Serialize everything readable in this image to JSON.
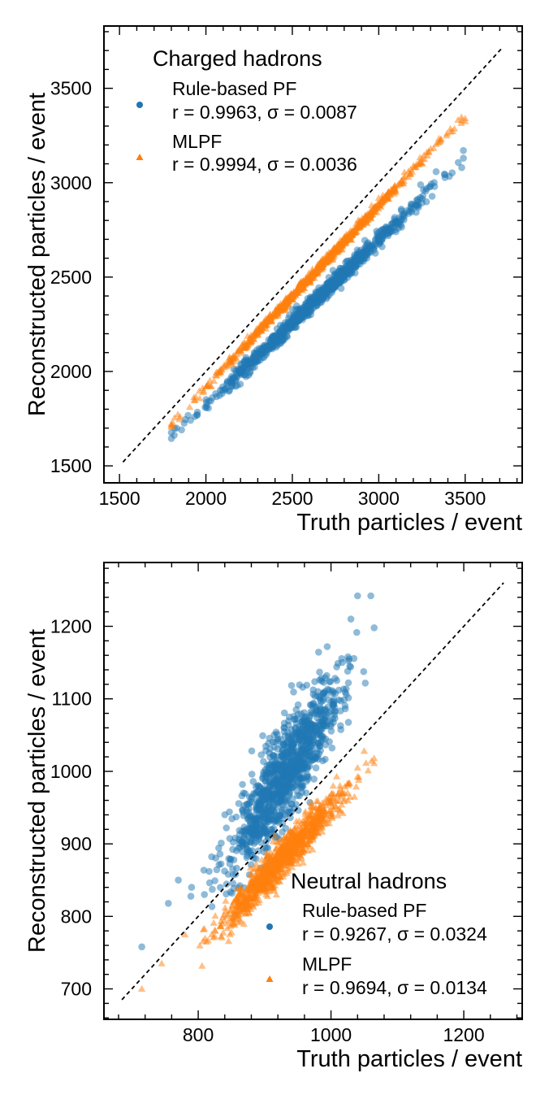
{
  "chart_data": [
    {
      "type": "scatter",
      "panel": "top",
      "xlabel": "Truth particles / event",
      "ylabel": "Reconstructed particles / event",
      "xlim": [
        1410,
        3830
      ],
      "ylim": [
        1410,
        3830
      ],
      "xticks": [
        1500,
        2000,
        2500,
        3000,
        3500
      ],
      "yticks": [
        1500,
        2000,
        2500,
        3000,
        3500
      ],
      "grid": false,
      "legend_placement": "upper-left",
      "legend_title": "Charged hadrons",
      "diagonal": {
        "from": 1520,
        "to": 3720,
        "style": "dashed"
      },
      "series": [
        {
          "name": "Rule-based PF",
          "stat_label": "r = 0.9963,  σ = 0.0087",
          "marker": "circle",
          "color": "#1f77b4",
          "n_points": 900,
          "seed": 11,
          "x_range": [
            1800,
            3490
          ],
          "relation": {
            "slope": 0.88,
            "intercept": 60,
            "scatter_y": 22,
            "x_dist": "normal",
            "x_mean": 2620,
            "x_sd": 300
          },
          "points": [
            [
              1800,
              1645
            ],
            [
              1830,
              1700
            ],
            [
              1880,
              1745
            ],
            [
              2160,
              1965
            ],
            [
              2700,
              2435
            ],
            [
              3100,
              2790
            ],
            [
              3250,
              2915
            ],
            [
              3490,
              3130
            ],
            [
              3480,
              3080
            ]
          ]
        },
        {
          "name": "MLPF",
          "stat_label": "r = 0.9994,  σ = 0.0036",
          "marker": "triangle",
          "color": "#ff7f0e",
          "n_points": 900,
          "seed": 23,
          "x_range": [
            1800,
            3500
          ],
          "relation": {
            "slope": 0.96,
            "intercept": 0,
            "scatter_y": 12,
            "x_dist": "normal",
            "x_mean": 2620,
            "x_sd": 300
          },
          "points": [
            [
              1800,
              1710
            ],
            [
              1850,
              1760
            ],
            [
              2000,
              1920
            ],
            [
              2500,
              2400
            ],
            [
              3000,
              2880
            ],
            [
              3480,
              3330
            ],
            [
              3500,
              3325
            ]
          ]
        }
      ]
    },
    {
      "type": "scatter",
      "panel": "bottom",
      "xlabel": "Truth particles / event",
      "ylabel": "Reconstructed particles / event",
      "xlim": [
        658,
        1288
      ],
      "ylim": [
        658,
        1288
      ],
      "xticks": [
        800,
        1000,
        1200
      ],
      "yticks": [
        700,
        800,
        900,
        1000,
        1100,
        1200
      ],
      "grid": false,
      "legend_placement": "lower-right",
      "legend_title": "Neutral hadrons",
      "diagonal": {
        "from": 685,
        "to": 1260,
        "style": "dashed"
      },
      "series": [
        {
          "name": "Rule-based PF",
          "stat_label": "r = 0.9267,  σ = 0.0324",
          "marker": "circle",
          "color": "#1f77b4",
          "n_points": 1100,
          "seed": 37,
          "x_range": [
            715,
            1065
          ],
          "relation": {
            "slope": 1.35,
            "intercept": -260,
            "scatter_y": 32,
            "x_dist": "normal",
            "x_mean": 930,
            "x_sd": 42
          },
          "points": [
            [
              715,
              758
            ],
            [
              755,
              818
            ],
            [
              770,
              850
            ],
            [
              790,
              840
            ],
            [
              1040,
              1242
            ],
            [
              1060,
              1242
            ],
            [
              1065,
              1198
            ],
            [
              1030,
              1210
            ]
          ]
        },
        {
          "name": "MLPF",
          "stat_label": "r = 0.9694,  σ = 0.0134",
          "marker": "triangle",
          "color": "#ff7f0e",
          "n_points": 1100,
          "seed": 51,
          "x_range": [
            715,
            1065
          ],
          "relation": {
            "slope": 0.97,
            "intercept": -20,
            "scatter_y": 13,
            "x_dist": "normal",
            "x_mean": 925,
            "x_sd": 45
          },
          "points": [
            [
              715,
              700
            ],
            [
              745,
              735
            ],
            [
              780,
              775
            ],
            [
              1050,
              1028
            ],
            [
              1065,
              1018
            ],
            [
              1040,
              1005
            ]
          ]
        }
      ]
    }
  ]
}
